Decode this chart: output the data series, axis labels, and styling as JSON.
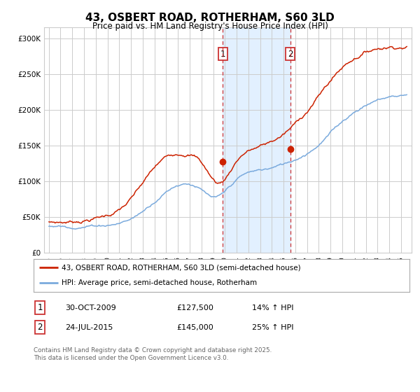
{
  "title": "43, OSBERT ROAD, ROTHERHAM, S60 3LD",
  "subtitle": "Price paid vs. HM Land Registry's House Price Index (HPI)",
  "ylabel_ticks": [
    "£0",
    "£50K",
    "£100K",
    "£150K",
    "£200K",
    "£250K",
    "£300K"
  ],
  "ytick_values": [
    0,
    50000,
    100000,
    150000,
    200000,
    250000,
    300000
  ],
  "ylim": [
    0,
    315000
  ],
  "transaction1_year": 2009.83,
  "transaction1_price": 127500,
  "transaction2_year": 2015.56,
  "transaction2_price": 145000,
  "legend_line1": "43, OSBERT ROAD, ROTHERHAM, S60 3LD (semi-detached house)",
  "legend_line2": "HPI: Average price, semi-detached house, Rotherham",
  "footer": "Contains HM Land Registry data © Crown copyright and database right 2025.\nThis data is licensed under the Open Government Licence v3.0.",
  "table_rows": [
    {
      "label": "1",
      "date": "30-OCT-2009",
      "price": "£127,500",
      "hpi": "14% ↑ HPI"
    },
    {
      "label": "2",
      "date": "24-JUL-2015",
      "price": "£145,000",
      "hpi": "25% ↑ HPI"
    }
  ],
  "hpi_color": "#7aaadd",
  "price_color": "#cc2200",
  "shade_color": "#ddeeff",
  "vline_color": "#cc3333",
  "background_color": "#ffffff",
  "grid_color": "#cccccc",
  "title_fontsize": 11,
  "subtitle_fontsize": 8.5
}
